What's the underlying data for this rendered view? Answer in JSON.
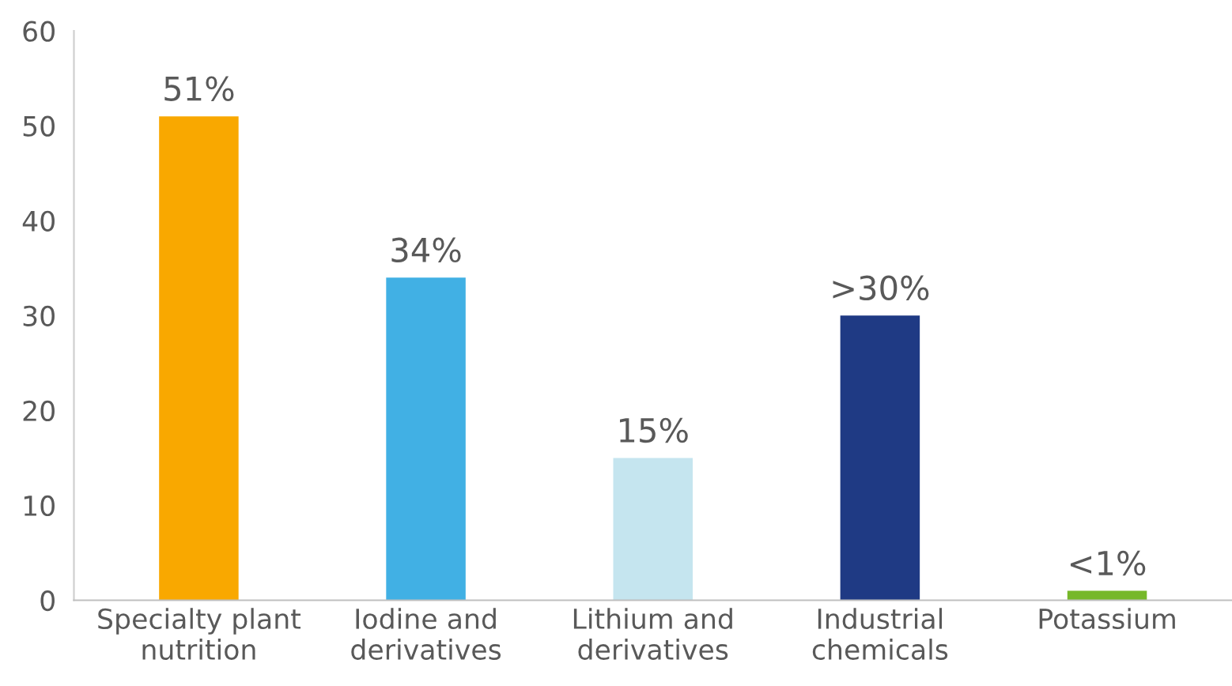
{
  "chart_data": {
    "type": "bar",
    "categories": [
      "Specialty plant\nnutrition",
      "Iodine and\nderivatives",
      "Lithium and\nderivatives",
      "Industrial\nchemicals",
      "Potassium"
    ],
    "values": [
      51,
      34,
      15,
      30,
      1
    ],
    "colors": [
      "#f9a800",
      "#41b0e4",
      "#c5e5ef",
      "#1f3a84",
      "#76b82a"
    ],
    "value_labels": [
      "51%",
      "34%",
      "15%",
      ">30%",
      "<1%"
    ],
    "ylim": [
      0,
      60
    ],
    "yticks": [
      0,
      10,
      20,
      30,
      40,
      50,
      60
    ],
    "grid": false,
    "legend": false
  }
}
